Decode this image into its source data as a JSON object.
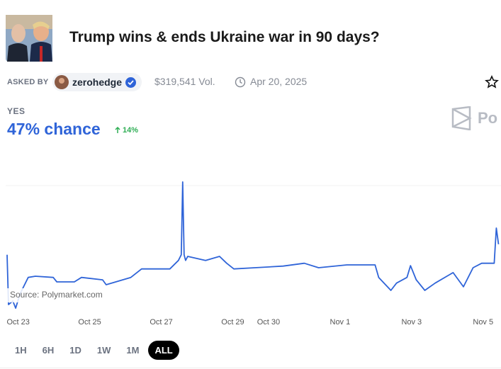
{
  "header": {
    "title": "Trump wins & ends Ukraine war in 90 days?"
  },
  "meta": {
    "asked_by_label": "ASKED BY",
    "user": "zerohedge",
    "volume": "$319,541 Vol.",
    "date": "Apr 20, 2025"
  },
  "outcome": {
    "label": "YES",
    "chance": "47% chance",
    "change": "14%"
  },
  "logo_text": "Po",
  "chart_data": {
    "type": "line",
    "source": "Source: Polymarket.com",
    "x": [
      -0.31,
      -0.27,
      -0.15,
      -0.07,
      0.05,
      0.28,
      0.48,
      0.98,
      1.08,
      1.57,
      1.77,
      2.36,
      2.46,
      3.15,
      3.45,
      4.24,
      4.48,
      4.56,
      4.6,
      4.64,
      4.68,
      4.74,
      5.24,
      5.63,
      5.83,
      6.03,
      6.62,
      7.41,
      8.0,
      8.4,
      9.19,
      9.98,
      10.08,
      10.42,
      10.58,
      10.87,
      10.97,
      11.13,
      11.37,
      11.66,
      12.16,
      12.45,
      12.72,
      12.96,
      13.31,
      13.37,
      13.43
    ],
    "series": [
      {
        "color": "#2f64d8",
        "values": [
          44.4,
          32.1,
          33,
          31.2,
          34.7,
          38.8,
          39.1,
          38.8,
          37.7,
          37.7,
          38.8,
          38.2,
          37,
          38.8,
          40.9,
          40.9,
          43,
          44.4,
          62.4,
          44.4,
          43,
          44,
          43,
          44,
          42.3,
          40.9,
          41.2,
          41.6,
          42.3,
          41.2,
          41.9,
          41.9,
          38.8,
          35.6,
          37.4,
          38.8,
          41.7,
          38.2,
          35.6,
          37.4,
          40,
          36.5,
          41.2,
          42.3,
          42.3,
          51,
          47
        ]
      }
    ],
    "xlim": [
      -0.35,
      13.5
    ],
    "ylim": [
      30,
      65
    ],
    "xticks": [
      {
        "value": 0,
        "label": "Oct 23"
      },
      {
        "value": 2,
        "label": "Oct 25"
      },
      {
        "value": 4,
        "label": "Oct 27"
      },
      {
        "value": 6,
        "label": "Oct 29"
      },
      {
        "value": 7,
        "label": "Oct 30"
      },
      {
        "value": 9,
        "label": "Nov 1"
      },
      {
        "value": 11,
        "label": "Nov 3"
      },
      {
        "value": 13,
        "label": "Nov 5"
      }
    ]
  },
  "ranges": [
    {
      "label": "1H",
      "active": false
    },
    {
      "label": "6H",
      "active": false
    },
    {
      "label": "1D",
      "active": false
    },
    {
      "label": "1W",
      "active": false
    },
    {
      "label": "1M",
      "active": false
    },
    {
      "label": "ALL",
      "active": true
    }
  ]
}
